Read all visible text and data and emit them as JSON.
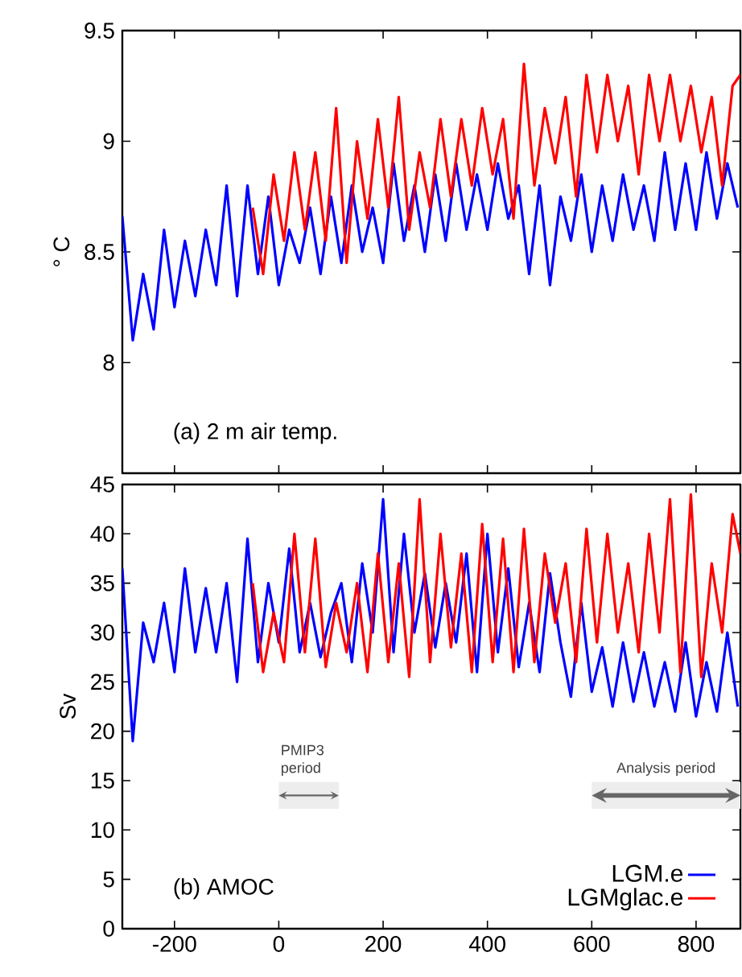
{
  "chart_data": [
    {
      "type": "line",
      "ylabel": "° C",
      "xlim": [
        -300,
        885
      ],
      "ylim": [
        7.5,
        9.5
      ],
      "xticks": [
        -200,
        0,
        200,
        400,
        600,
        800
      ],
      "yticks": [
        8,
        8.5,
        9,
        9.5
      ],
      "tick_labels": "y",
      "annotations": [
        "(a) 2 m air temp."
      ],
      "series": [
        {
          "color": "#0000ff",
          "x": [
            -300,
            -280,
            -260,
            -240,
            -220,
            -200,
            -180,
            -160,
            -140,
            -120,
            -100,
            -80,
            -60,
            -40,
            -20,
            0,
            20,
            40,
            60,
            80,
            100,
            120,
            140,
            160,
            180,
            200,
            220,
            240,
            260,
            280,
            300,
            320,
            340,
            360,
            380,
            400,
            420,
            440,
            460,
            480,
            500,
            520,
            540,
            560,
            580,
            600,
            620,
            640,
            660,
            680,
            700,
            720,
            740,
            760,
            780,
            800,
            820,
            840,
            860,
            880
          ],
          "values": [
            8.66,
            8.1,
            8.4,
            8.15,
            8.6,
            8.25,
            8.55,
            8.3,
            8.6,
            8.35,
            8.8,
            8.3,
            8.8,
            8.4,
            8.75,
            8.35,
            8.6,
            8.45,
            8.7,
            8.4,
            8.75,
            8.45,
            8.8,
            8.5,
            8.7,
            8.45,
            8.9,
            8.55,
            8.8,
            8.5,
            8.85,
            8.55,
            8.9,
            8.6,
            8.85,
            8.6,
            8.9,
            8.65,
            8.8,
            8.4,
            8.8,
            8.35,
            8.75,
            8.55,
            8.85,
            8.5,
            8.8,
            8.55,
            8.85,
            8.6,
            8.8,
            8.55,
            8.95,
            8.6,
            8.9,
            8.6,
            8.95,
            8.65,
            8.9,
            8.7
          ]
        },
        {
          "color": "#ff0000",
          "x": [
            -50,
            -30,
            -10,
            10,
            30,
            50,
            70,
            90,
            110,
            130,
            150,
            170,
            190,
            210,
            230,
            250,
            270,
            290,
            310,
            330,
            350,
            370,
            390,
            410,
            430,
            450,
            470,
            490,
            510,
            530,
            550,
            570,
            590,
            610,
            630,
            650,
            670,
            690,
            710,
            730,
            750,
            770,
            790,
            810,
            830,
            850,
            870,
            885
          ],
          "values": [
            8.7,
            8.4,
            8.85,
            8.55,
            8.95,
            8.6,
            8.95,
            8.55,
            9.15,
            8.45,
            9.0,
            8.65,
            9.1,
            8.7,
            9.2,
            8.6,
            8.95,
            8.7,
            9.1,
            8.75,
            9.1,
            8.8,
            9.15,
            8.85,
            9.1,
            8.65,
            9.35,
            8.8,
            9.15,
            8.9,
            9.2,
            8.75,
            9.3,
            8.95,
            9.3,
            9.0,
            9.25,
            8.85,
            9.3,
            9.0,
            9.3,
            9.0,
            9.25,
            8.95,
            9.2,
            8.8,
            9.25,
            9.3
          ]
        }
      ]
    },
    {
      "type": "line",
      "ylabel": "Sv",
      "xlim": [
        -300,
        885
      ],
      "ylim": [
        0,
        45
      ],
      "xticks": [
        -200,
        0,
        200,
        400,
        600,
        800
      ],
      "yticks": [
        0,
        5,
        10,
        15,
        20,
        25,
        30,
        35,
        40,
        45
      ],
      "legend": "bottom right",
      "annotations": [
        "(b) AMOC"
      ],
      "bands": [
        {
          "axis": "x",
          "from": 0,
          "to": 115,
          "label": "PMIP3 period",
          "color": "#ededed"
        },
        {
          "axis": "x",
          "from": 600,
          "to": 885,
          "label": "Analysis period",
          "color": "#ededed"
        }
      ],
      "series": [
        {
          "name": "LGM.e",
          "color": "#0000ff",
          "x": [
            -300,
            -280,
            -260,
            -240,
            -220,
            -200,
            -180,
            -160,
            -140,
            -120,
            -100,
            -80,
            -60,
            -40,
            -20,
            0,
            20,
            40,
            60,
            80,
            100,
            120,
            140,
            160,
            180,
            200,
            220,
            240,
            260,
            280,
            300,
            320,
            340,
            360,
            380,
            400,
            420,
            440,
            460,
            480,
            500,
            520,
            540,
            560,
            580,
            600,
            620,
            640,
            660,
            680,
            700,
            720,
            740,
            760,
            780,
            800,
            820,
            840,
            860,
            880
          ],
          "values": [
            36.5,
            19,
            31,
            27,
            33,
            26,
            36.5,
            28,
            34.5,
            28,
            35,
            25,
            39.5,
            27,
            35,
            29,
            38.5,
            28,
            33,
            27.5,
            32,
            35,
            27,
            37,
            30,
            43.5,
            28,
            40,
            30,
            36,
            28.5,
            35,
            29,
            38,
            26,
            40,
            28,
            36.5,
            26.5,
            33,
            26,
            36,
            29,
            23.5,
            33,
            24,
            28.5,
            22.5,
            29,
            23,
            28,
            22.5,
            27,
            22,
            29,
            21.5,
            27,
            22,
            30,
            22.5
          ]
        },
        {
          "name": "LGMglac.e",
          "color": "#ff0000",
          "x": [
            -50,
            -30,
            -10,
            10,
            30,
            50,
            70,
            90,
            110,
            130,
            150,
            170,
            190,
            210,
            230,
            250,
            270,
            290,
            310,
            330,
            350,
            370,
            390,
            410,
            430,
            450,
            470,
            490,
            510,
            530,
            550,
            570,
            590,
            610,
            630,
            650,
            670,
            690,
            710,
            730,
            750,
            770,
            790,
            810,
            830,
            850,
            870,
            885
          ],
          "values": [
            35,
            26,
            32,
            27,
            40,
            28,
            39.5,
            26.5,
            33,
            28,
            35,
            26,
            38,
            27,
            37,
            25.5,
            43.5,
            27,
            40,
            28.5,
            38,
            26,
            41,
            27,
            39.5,
            26,
            40.5,
            27,
            38,
            31,
            37,
            27,
            40.5,
            29,
            40,
            30,
            37,
            28,
            40,
            30,
            43.5,
            26,
            44,
            25.5,
            37,
            30,
            42,
            38
          ]
        }
      ]
    }
  ]
}
